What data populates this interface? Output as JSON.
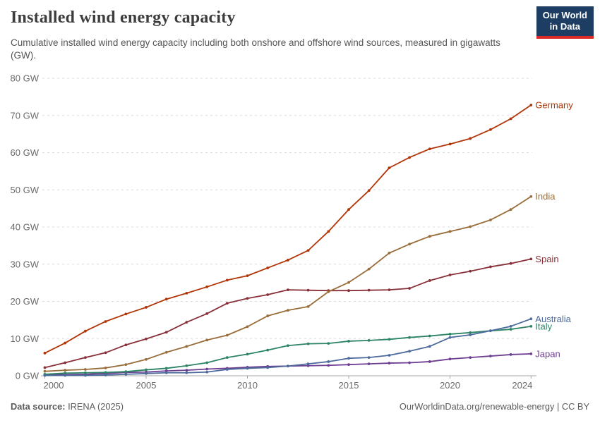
{
  "header": {
    "title": "Installed wind energy capacity",
    "subtitle": "Cumulative installed wind energy capacity including both onshore and offshore wind sources, measured in gigawatts (GW).",
    "logo": {
      "line1": "Our World",
      "line2": "in Data",
      "bg_color": "#1d3d63",
      "accent_color": "#dc2a27",
      "text_color": "#ffffff"
    }
  },
  "footer": {
    "source_label": "Data source:",
    "source_value": " IRENA (2025)",
    "right_text": "OurWorldinData.org/renewable-energy | CC BY"
  },
  "chart_data": {
    "type": "line",
    "title": "Installed wind energy capacity",
    "xlabel": "",
    "ylabel": "GW",
    "ylim": [
      0,
      80
    ],
    "grid": "horizontal-dashed",
    "legend_position": "right-end-labels",
    "x": [
      2000,
      2001,
      2002,
      2003,
      2004,
      2005,
      2006,
      2007,
      2008,
      2009,
      2010,
      2011,
      2012,
      2013,
      2014,
      2015,
      2016,
      2017,
      2018,
      2019,
      2020,
      2021,
      2022,
      2023,
      2024
    ],
    "x_ticks": [
      2000,
      2005,
      2010,
      2015,
      2020,
      2024
    ],
    "x_tick_labels": [
      "2000",
      "2005",
      "2010",
      "2015",
      "2020",
      "2024"
    ],
    "y_ticks": [
      0,
      10,
      20,
      30,
      40,
      50,
      60,
      70,
      80
    ],
    "y_tick_labels": [
      "0 GW",
      "10 GW",
      "20 GW",
      "30 GW",
      "40 GW",
      "50 GW",
      "60 GW",
      "70 GW",
      "80 GW"
    ],
    "series": [
      {
        "name": "Germany",
        "color": "#B13507",
        "values": [
          6.1,
          8.8,
          12.0,
          14.6,
          16.6,
          18.4,
          20.6,
          22.2,
          23.9,
          25.7,
          26.9,
          29.0,
          31.1,
          33.7,
          38.8,
          44.7,
          49.8,
          55.9,
          58.7,
          61.0,
          62.3,
          63.8,
          66.2,
          69.1,
          72.8
        ]
      },
      {
        "name": "India",
        "color": "#996D39",
        "values": [
          1.2,
          1.5,
          1.7,
          2.1,
          3.0,
          4.4,
          6.3,
          7.9,
          9.6,
          10.9,
          13.2,
          16.1,
          17.6,
          18.6,
          22.6,
          25.1,
          28.7,
          33.0,
          35.4,
          37.5,
          38.8,
          40.1,
          41.9,
          44.7,
          48.2
        ]
      },
      {
        "name": "Spain",
        "color": "#883039",
        "values": [
          2.2,
          3.5,
          4.9,
          6.2,
          8.3,
          9.9,
          11.7,
          14.4,
          16.7,
          19.5,
          20.8,
          21.8,
          23.1,
          23.0,
          22.9,
          22.9,
          23.0,
          23.1,
          23.5,
          25.6,
          27.1,
          28.1,
          29.3,
          30.2,
          31.4
        ]
      },
      {
        "name": "Australia",
        "color": "#4C6A9C",
        "values": [
          0.1,
          0.1,
          0.1,
          0.2,
          0.4,
          0.6,
          0.8,
          0.8,
          1.0,
          1.7,
          2.0,
          2.2,
          2.6,
          3.2,
          3.8,
          4.7,
          4.9,
          5.5,
          6.6,
          7.9,
          10.3,
          11.0,
          12.1,
          13.3,
          15.3
        ]
      },
      {
        "name": "Italy",
        "color": "#2C8465",
        "values": [
          0.4,
          0.7,
          0.8,
          0.9,
          1.1,
          1.6,
          2.0,
          2.7,
          3.5,
          4.9,
          5.8,
          6.9,
          8.1,
          8.6,
          8.7,
          9.3,
          9.5,
          9.8,
          10.3,
          10.7,
          11.2,
          11.6,
          12.1,
          12.5,
          13.3
        ]
      },
      {
        "name": "Japan",
        "color": "#6D3E91",
        "values": [
          0.3,
          0.3,
          0.4,
          0.6,
          0.9,
          1.0,
          1.3,
          1.5,
          1.8,
          2.0,
          2.3,
          2.5,
          2.6,
          2.7,
          2.8,
          3.0,
          3.2,
          3.4,
          3.5,
          3.8,
          4.5,
          4.9,
          5.3,
          5.7,
          5.9
        ]
      }
    ],
    "style": {
      "grid_color": "#dcdcdc",
      "axis_color": "#a5a5a5",
      "tick_label_color": "#696969"
    }
  }
}
